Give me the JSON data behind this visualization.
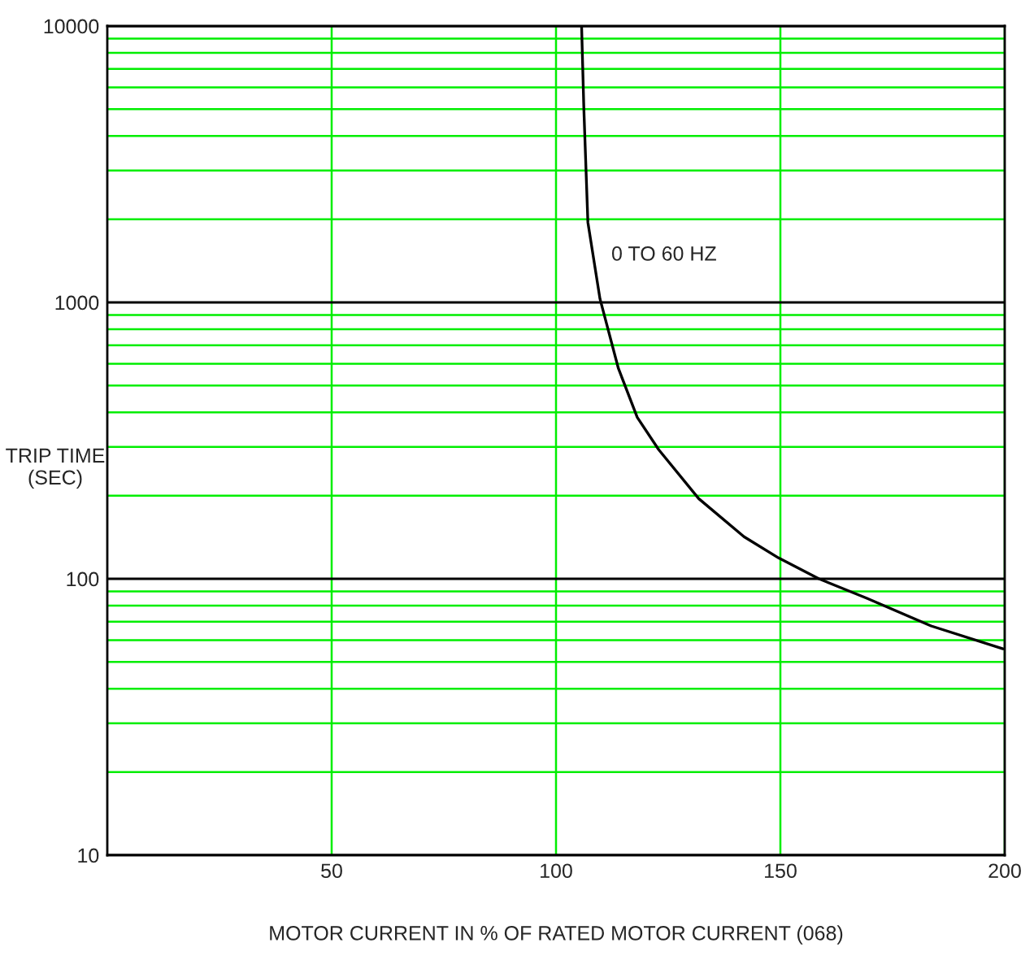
{
  "chart_data": {
    "type": "line",
    "xlabel": "MOTOR CURRENT IN % OF RATED MOTOR CURRENT (068)",
    "ylabel": "TRIP TIME\n(SEC)",
    "x": [
      105.7,
      106.2,
      107.1,
      109.8,
      113.9,
      118.1,
      122.9,
      131.8,
      141.9,
      149.6,
      158.6,
      169.3,
      183.6,
      199.6
    ],
    "series": [
      {
        "color": "#000000",
        "values": [
          10000,
          5035,
          1950,
          1030,
          577,
          384,
          293,
          195,
          142,
          119,
          100,
          85,
          67.5,
          55.8
        ]
      }
    ],
    "annotations": [
      "0 TO 60 HZ"
    ],
    "xlim": [
      0,
      200
    ],
    "xticks": [
      50,
      100,
      150,
      200
    ],
    "ylim": [
      10,
      10000
    ],
    "yticks": [
      10,
      100,
      1000,
      10000
    ],
    "log": "y",
    "grid": true,
    "legend": false,
    "marker": "none",
    "line_style": "solid"
  }
}
